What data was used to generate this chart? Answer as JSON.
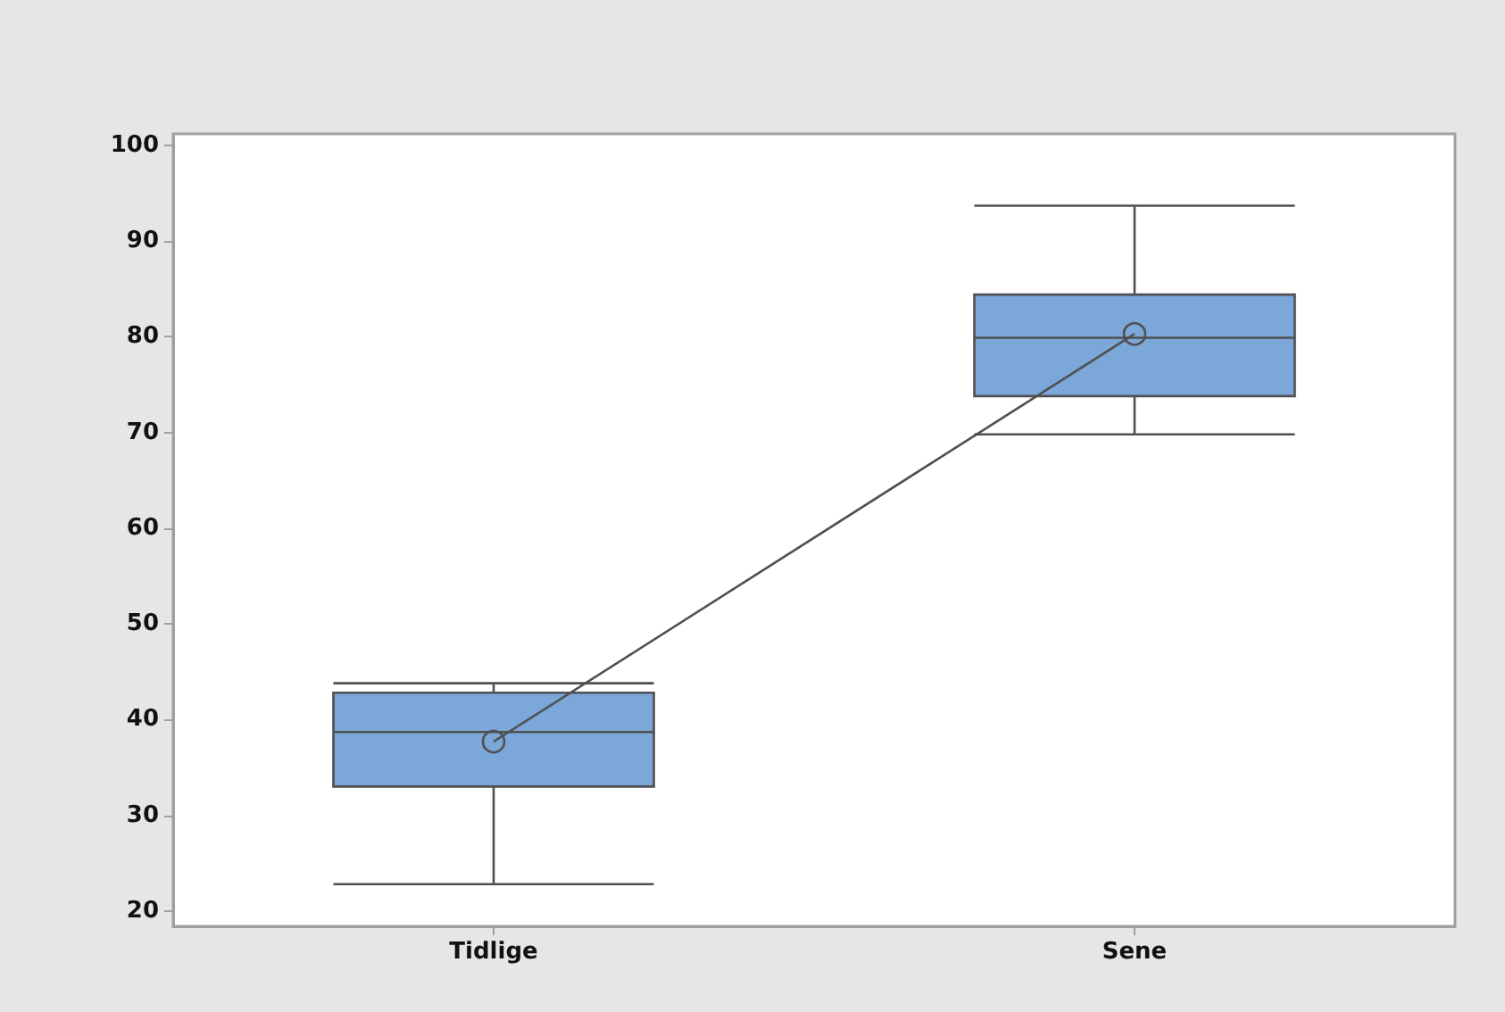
{
  "chart_data": {
    "type": "box",
    "categories": [
      "Tidlige",
      "Sene"
    ],
    "series": [
      {
        "type": "box",
        "color": "#7ba7d9",
        "boxes": [
          {
            "low": 22.8,
            "q1": 33,
            "median": 38.7,
            "q3": 42.8,
            "high": 43.8
          },
          {
            "low": 69.8,
            "q1": 73.8,
            "median": 79.9,
            "q3": 84.4,
            "high": 93.7
          }
        ]
      },
      {
        "type": "line",
        "color": "#505050",
        "values": [
          37.7,
          80.3
        ],
        "marker": "circle"
      }
    ],
    "ylim": [
      18.4,
      101.2
    ],
    "yticks": [
      20,
      30,
      40,
      50,
      60,
      70,
      80,
      90,
      100
    ],
    "grid": false
  }
}
